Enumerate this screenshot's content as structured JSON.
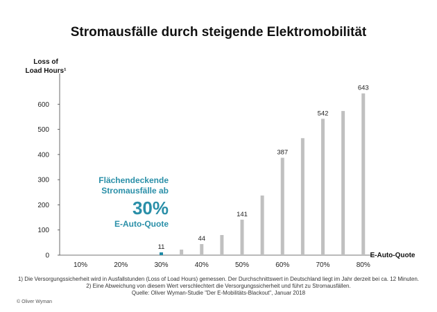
{
  "chart_data": {
    "type": "bar",
    "title": "Stromausfälle durch steigende Elektromobilität",
    "ylabel_line1": "Loss of",
    "ylabel_line2": "Load Hours¹",
    "xlabel": "E-Auto-Quote",
    "ylim": [
      0,
      700
    ],
    "yticks": [
      0,
      100,
      200,
      300,
      400,
      500,
      600
    ],
    "xticks": [
      "10%",
      "20%",
      "30%",
      "40%",
      "50%",
      "60%",
      "70%",
      "80%"
    ],
    "x": [
      5,
      10,
      15,
      20,
      25,
      30,
      35,
      40,
      45,
      50,
      55,
      60,
      65,
      70,
      75,
      80
    ],
    "values": [
      0,
      0,
      0,
      0,
      0,
      11,
      22,
      44,
      80,
      141,
      237,
      387,
      465,
      542,
      573,
      643
    ],
    "labeled_values": [
      11,
      44,
      141,
      387,
      542,
      643
    ],
    "bar_color": "#c0c0c0",
    "highlight_color": "#1f8aa6",
    "highlight_x": 30,
    "grid": false
  },
  "callout": {
    "line1": "Flächendeckende",
    "line2": "Stromausfälle ab",
    "big": "30%",
    "line3": "E-Auto-Quote"
  },
  "footnotes": {
    "note1": "1)    Die Versorgungssicherheit wird in Ausfallstunden (Loss of Load Hours) gemessen. Der Durchschnittswert in Deutschland liegt im Jahr derzeit bei ca. 12 Minuten.",
    "note2": "2)    Eine Abweichung von diesem Wert verschlechtert die Versorgungssicherheit und führt zu Stromausfällen.",
    "source": "Quelle: Oliver Wyman-Studie \"Der E-Mobilitäts-Blackout\", Januar 2018"
  },
  "copyright": "© Oliver Wyman"
}
